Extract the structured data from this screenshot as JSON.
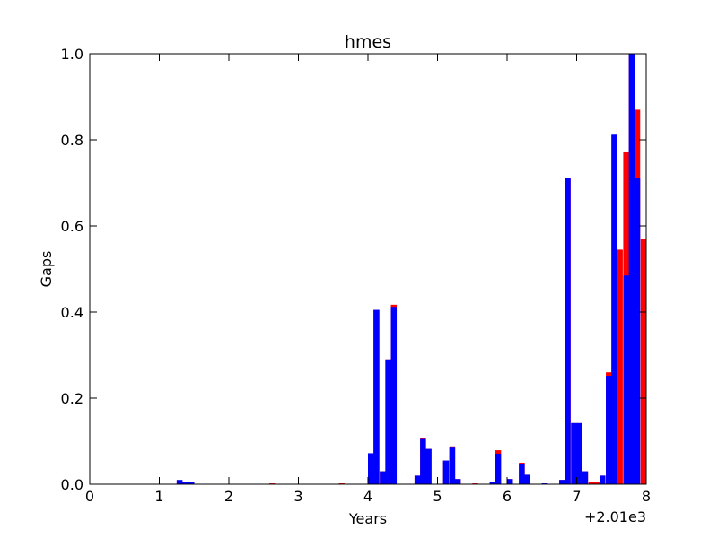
{
  "chart_data": {
    "type": "bar",
    "title": "hmes",
    "xlabel": "Years",
    "ylabel": "Gaps",
    "x_offset_label": "+2.01e3",
    "xlim": [
      2010,
      2018
    ],
    "ylim": [
      0,
      1
    ],
    "grid": false,
    "legend": "none",
    "bin_width": 0.0833,
    "xticks": [
      {
        "value": 2010,
        "label": "0"
      },
      {
        "value": 2011,
        "label": "1"
      },
      {
        "value": 2012,
        "label": "2"
      },
      {
        "value": 2013,
        "label": "3"
      },
      {
        "value": 2014,
        "label": "4"
      },
      {
        "value": 2015,
        "label": "5"
      },
      {
        "value": 2016,
        "label": "6"
      },
      {
        "value": 2017,
        "label": "7"
      },
      {
        "value": 2018,
        "label": "8"
      }
    ],
    "yticks": [
      {
        "value": 0,
        "label": "0.0"
      },
      {
        "value": 0.2,
        "label": "0.2"
      },
      {
        "value": 0.4,
        "label": "0.4"
      },
      {
        "value": 0.6,
        "label": "0.6"
      },
      {
        "value": 0.8,
        "label": "0.8"
      },
      {
        "value": 1.0,
        "label": "1.0"
      }
    ],
    "series": [
      {
        "color": "#ff0000",
        "bars": [
          {
            "x": 2011.25,
            "y": 0.008
          },
          {
            "x": 2011.33,
            "y": 0.006
          },
          {
            "x": 2011.42,
            "y": 0.006
          },
          {
            "x": 2012.58,
            "y": 0.002
          },
          {
            "x": 2013.58,
            "y": 0.002
          },
          {
            "x": 2014.0,
            "y": 0.07
          },
          {
            "x": 2014.08,
            "y": 0.405
          },
          {
            "x": 2014.17,
            "y": 0.03
          },
          {
            "x": 2014.25,
            "y": 0.29
          },
          {
            "x": 2014.33,
            "y": 0.417
          },
          {
            "x": 2014.67,
            "y": 0.02
          },
          {
            "x": 2014.75,
            "y": 0.108
          },
          {
            "x": 2014.83,
            "y": 0.082
          },
          {
            "x": 2015.08,
            "y": 0.055
          },
          {
            "x": 2015.17,
            "y": 0.088
          },
          {
            "x": 2015.25,
            "y": 0.012
          },
          {
            "x": 2015.5,
            "y": 0.002
          },
          {
            "x": 2015.75,
            "y": 0.005
          },
          {
            "x": 2015.83,
            "y": 0.079
          },
          {
            "x": 2016.0,
            "y": 0.012
          },
          {
            "x": 2016.17,
            "y": 0.05
          },
          {
            "x": 2016.25,
            "y": 0.022
          },
          {
            "x": 2016.5,
            "y": 0.002
          },
          {
            "x": 2016.75,
            "y": 0.01
          },
          {
            "x": 2016.83,
            "y": 0.71
          },
          {
            "x": 2016.92,
            "y": 0.142
          },
          {
            "x": 2017.0,
            "y": 0.142
          },
          {
            "x": 2017.08,
            "y": 0.03
          },
          {
            "x": 2017.17,
            "y": 0.005
          },
          {
            "x": 2017.25,
            "y": 0.005
          },
          {
            "x": 2017.33,
            "y": 0.02
          },
          {
            "x": 2017.42,
            "y": 0.26
          },
          {
            "x": 2017.5,
            "y": 0.81
          },
          {
            "x": 2017.58,
            "y": 0.545
          },
          {
            "x": 2017.67,
            "y": 0.773
          },
          {
            "x": 2017.75,
            "y": 1.0
          },
          {
            "x": 2017.83,
            "y": 0.87
          },
          {
            "x": 2017.92,
            "y": 0.57
          }
        ]
      },
      {
        "color": "#0000ff",
        "bars": [
          {
            "x": 2011.25,
            "y": 0.01
          },
          {
            "x": 2011.33,
            "y": 0.006
          },
          {
            "x": 2011.42,
            "y": 0.006
          },
          {
            "x": 2014.0,
            "y": 0.072
          },
          {
            "x": 2014.08,
            "y": 0.405
          },
          {
            "x": 2014.17,
            "y": 0.03
          },
          {
            "x": 2014.25,
            "y": 0.29
          },
          {
            "x": 2014.33,
            "y": 0.412
          },
          {
            "x": 2014.67,
            "y": 0.02
          },
          {
            "x": 2014.75,
            "y": 0.105
          },
          {
            "x": 2014.83,
            "y": 0.082
          },
          {
            "x": 2015.08,
            "y": 0.055
          },
          {
            "x": 2015.17,
            "y": 0.085
          },
          {
            "x": 2015.25,
            "y": 0.012
          },
          {
            "x": 2015.75,
            "y": 0.005
          },
          {
            "x": 2015.83,
            "y": 0.071
          },
          {
            "x": 2016.0,
            "y": 0.012
          },
          {
            "x": 2016.17,
            "y": 0.048
          },
          {
            "x": 2016.25,
            "y": 0.022
          },
          {
            "x": 2016.5,
            "y": 0.002
          },
          {
            "x": 2016.75,
            "y": 0.01
          },
          {
            "x": 2016.83,
            "y": 0.712
          },
          {
            "x": 2016.92,
            "y": 0.142
          },
          {
            "x": 2017.0,
            "y": 0.142
          },
          {
            "x": 2017.08,
            "y": 0.03
          },
          {
            "x": 2017.33,
            "y": 0.02
          },
          {
            "x": 2017.42,
            "y": 0.252
          },
          {
            "x": 2017.5,
            "y": 0.812
          },
          {
            "x": 2017.67,
            "y": 0.485
          },
          {
            "x": 2017.75,
            "y": 1.0
          },
          {
            "x": 2017.83,
            "y": 0.712
          }
        ]
      }
    ]
  }
}
